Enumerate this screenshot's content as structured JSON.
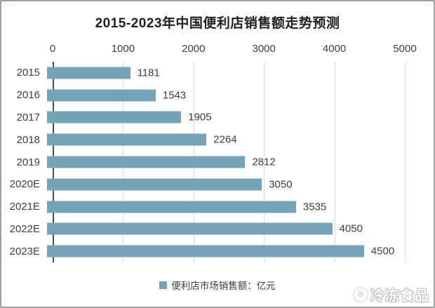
{
  "chart_data": {
    "type": "bar",
    "orientation": "horizontal",
    "title": "2015-2023年中国便利店销售额走势预测",
    "categories": [
      "2015",
      "2016",
      "2017",
      "2018",
      "2019",
      "2020E",
      "2021E",
      "2022E",
      "2023E"
    ],
    "values": [
      1181,
      1543,
      1905,
      2264,
      2812,
      3050,
      3535,
      4050,
      4500
    ],
    "xlabel": "",
    "ylabel": "",
    "xlim": [
      0,
      5000
    ],
    "x_ticks": [
      0,
      1000,
      2000,
      3000,
      4000,
      5000
    ],
    "grid": true,
    "value_labels": true,
    "legend": {
      "label": "便利店市场销售额：亿元",
      "position": "bottom"
    }
  },
  "colors": {
    "bar": "#75a3b7",
    "grid": "#d9d9d9",
    "axis": "#4d4d4d",
    "text": "#3d3d3d",
    "frame_border": "#9aa0a3"
  },
  "watermark": {
    "text": "冷冻食品",
    "logo_icon": "snowflake-icon",
    "logo_glyph": "❄"
  }
}
